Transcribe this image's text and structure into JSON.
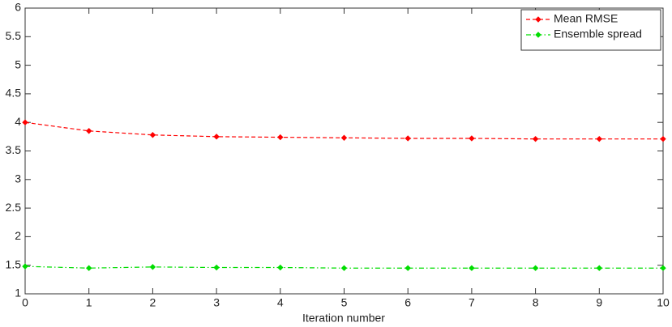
{
  "chart_data": {
    "type": "line",
    "x_label": "Iteration number",
    "x": [
      0,
      1,
      2,
      3,
      4,
      5,
      6,
      7,
      8,
      9,
      10
    ],
    "series": [
      {
        "name": "Mean RMSE",
        "color": "#ff0000",
        "dash": "dashed",
        "values": [
          4.0,
          3.85,
          3.78,
          3.75,
          3.74,
          3.73,
          3.72,
          3.72,
          3.71,
          3.71,
          3.71
        ]
      },
      {
        "name": "Ensemble spread",
        "color": "#00dd00",
        "dash": "dashdot",
        "values": [
          1.48,
          1.45,
          1.47,
          1.46,
          1.46,
          1.45,
          1.45,
          1.45,
          1.45,
          1.45,
          1.45
        ]
      }
    ],
    "xlim": [
      0,
      10
    ],
    "xticks": [
      0,
      1,
      2,
      3,
      4,
      5,
      6,
      7,
      8,
      9,
      10
    ],
    "ylim": [
      1,
      6
    ],
    "yticks": [
      1,
      1.5,
      2,
      2.5,
      3,
      3.5,
      4,
      4.5,
      5,
      5.5,
      6
    ],
    "legend": "upper-right"
  }
}
